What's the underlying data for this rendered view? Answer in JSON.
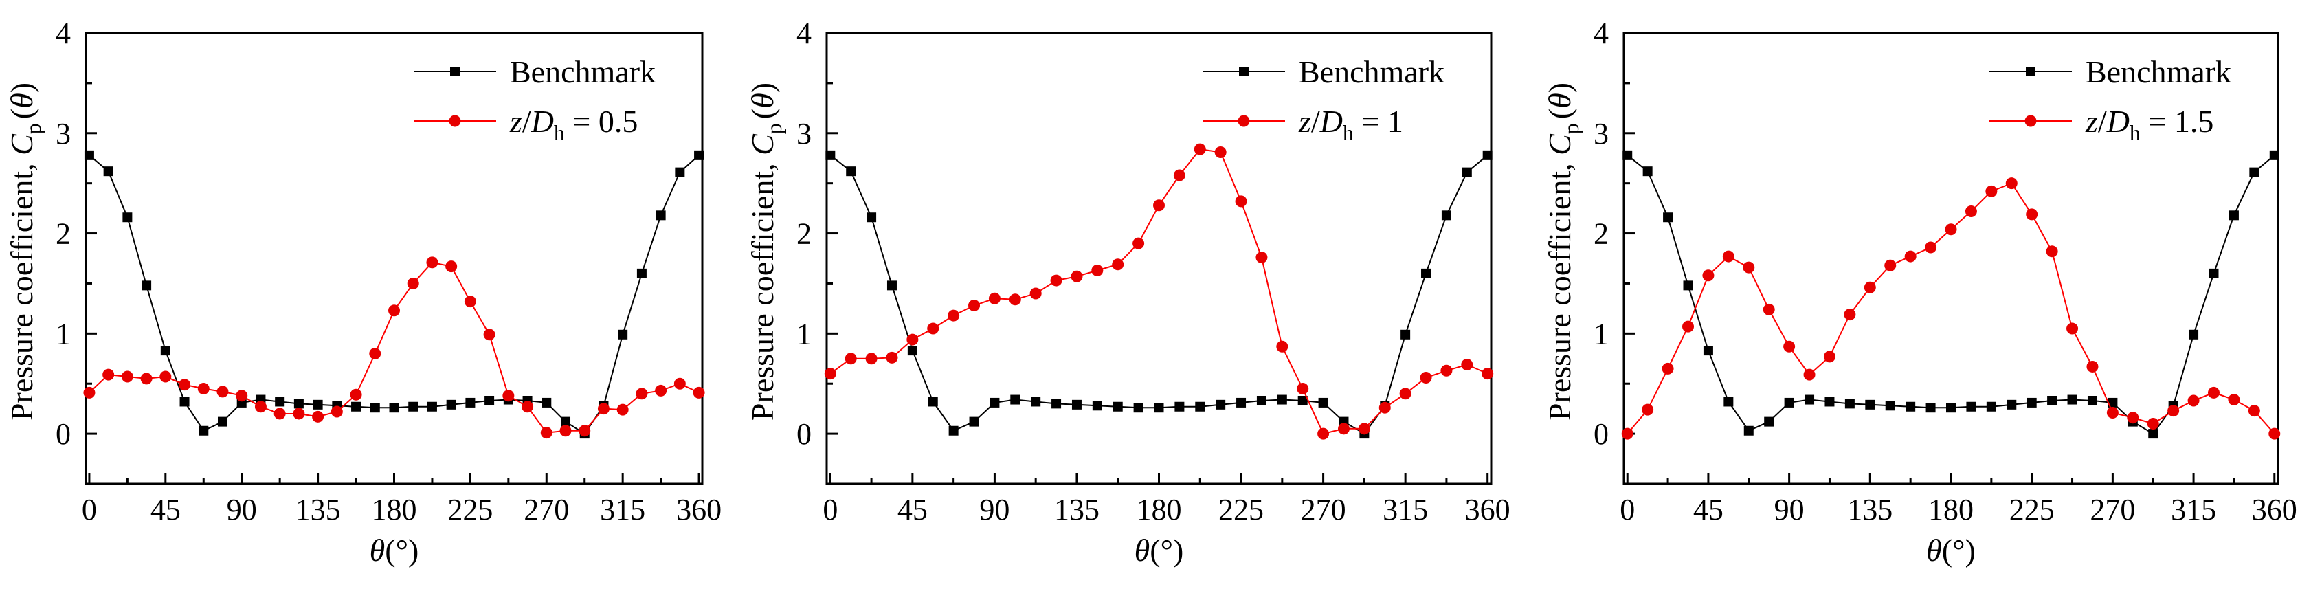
{
  "figure": {
    "colors": {
      "benchmark": "#000000",
      "comparison": "#ff0000",
      "comparison_marker": "#e60000",
      "axis": "#000000"
    }
  },
  "chart_data": [
    {
      "type": "line",
      "xlabel_symbol": "θ",
      "xlabel_unit": "(°)",
      "ylabel_prefix": "Pressure coefficient, ",
      "ylabel_symbol": "C",
      "ylabel_subscript": "p",
      "ylabel_arg_open": "(",
      "ylabel_arg_symbol": "θ",
      "ylabel_arg_close": ")",
      "xlim": [
        -2,
        362
      ],
      "ylim": [
        -0.5,
        4
      ],
      "x_ticks": [
        0,
        45,
        90,
        135,
        180,
        225,
        270,
        315,
        360
      ],
      "x_tick_labels": [
        "0",
        "45",
        "90",
        "135",
        "180",
        "225",
        "270",
        "315",
        "360"
      ],
      "y_ticks": [
        0,
        1,
        2,
        3,
        4
      ],
      "y_tick_labels": [
        "0",
        "1",
        "2",
        "3",
        "4"
      ],
      "legend_position": "top-right",
      "series": [
        {
          "name": "Benchmark",
          "legend_label": "Benchmark",
          "marker": "square",
          "color": "#000000",
          "x": [
            0,
            11.25,
            22.5,
            33.75,
            45,
            56.25,
            67.5,
            78.75,
            90,
            101.25,
            112.5,
            123.75,
            135,
            146.25,
            157.5,
            168.75,
            180,
            191.25,
            202.5,
            213.75,
            225,
            236.25,
            247.5,
            258.75,
            270,
            281.25,
            292.5,
            303.75,
            315,
            326.25,
            337.5,
            348.75,
            360
          ],
          "values": [
            2.78,
            2.62,
            2.16,
            1.48,
            0.83,
            0.32,
            0.03,
            0.12,
            0.31,
            0.34,
            0.32,
            0.3,
            0.29,
            0.28,
            0.27,
            0.26,
            0.26,
            0.27,
            0.27,
            0.29,
            0.31,
            0.33,
            0.34,
            0.33,
            0.31,
            0.12,
            0.0,
            0.28,
            0.99,
            1.6,
            2.18,
            2.61,
            2.78
          ]
        },
        {
          "name": "z/Dh = 0.5",
          "legend_label_italic": "z",
          "legend_label_slash": "/",
          "legend_label_italic2": "D",
          "legend_label_sub": "h",
          "legend_label_rest": " = 0.5",
          "marker": "circle",
          "color": "#ff0000",
          "x": [
            0,
            11.25,
            22.5,
            33.75,
            45,
            56.25,
            67.5,
            78.75,
            90,
            101.25,
            112.5,
            123.75,
            135,
            146.25,
            157.5,
            168.75,
            180,
            191.25,
            202.5,
            213.75,
            225,
            236.25,
            247.5,
            258.75,
            270,
            281.25,
            292.5,
            303.75,
            315,
            326.25,
            337.5,
            348.75,
            360
          ],
          "values": [
            0.41,
            0.59,
            0.57,
            0.55,
            0.57,
            0.49,
            0.45,
            0.42,
            0.38,
            0.27,
            0.2,
            0.2,
            0.17,
            0.22,
            0.39,
            0.8,
            1.23,
            1.5,
            1.71,
            1.67,
            1.32,
            0.99,
            0.38,
            0.27,
            0.01,
            0.03,
            0.03,
            0.25,
            0.24,
            0.4,
            0.43,
            0.5,
            0.41
          ]
        }
      ]
    },
    {
      "type": "line",
      "xlabel_symbol": "θ",
      "xlabel_unit": "(°)",
      "ylabel_prefix": "Pressure coefficient, ",
      "ylabel_symbol": "C",
      "ylabel_subscript": "p",
      "ylabel_arg_open": "(",
      "ylabel_arg_symbol": "θ",
      "ylabel_arg_close": ")",
      "xlim": [
        -2,
        362
      ],
      "ylim": [
        -0.5,
        4
      ],
      "x_ticks": [
        0,
        45,
        90,
        135,
        180,
        225,
        270,
        315,
        360
      ],
      "x_tick_labels": [
        "0",
        "45",
        "90",
        "135",
        "180",
        "225",
        "270",
        "315",
        "360"
      ],
      "y_ticks": [
        0,
        1,
        2,
        3,
        4
      ],
      "y_tick_labels": [
        "0",
        "1",
        "2",
        "3",
        "4"
      ],
      "legend_position": "top-right",
      "series": [
        {
          "name": "Benchmark",
          "legend_label": "Benchmark",
          "marker": "square",
          "color": "#000000",
          "x": [
            0,
            11.25,
            22.5,
            33.75,
            45,
            56.25,
            67.5,
            78.75,
            90,
            101.25,
            112.5,
            123.75,
            135,
            146.25,
            157.5,
            168.75,
            180,
            191.25,
            202.5,
            213.75,
            225,
            236.25,
            247.5,
            258.75,
            270,
            281.25,
            292.5,
            303.75,
            315,
            326.25,
            337.5,
            348.75,
            360
          ],
          "values": [
            2.78,
            2.62,
            2.16,
            1.48,
            0.83,
            0.32,
            0.03,
            0.12,
            0.31,
            0.34,
            0.32,
            0.3,
            0.29,
            0.28,
            0.27,
            0.26,
            0.26,
            0.27,
            0.27,
            0.29,
            0.31,
            0.33,
            0.34,
            0.33,
            0.31,
            0.12,
            0.0,
            0.28,
            0.99,
            1.6,
            2.18,
            2.61,
            2.78
          ]
        },
        {
          "name": "z/Dh = 1",
          "legend_label_italic": "z",
          "legend_label_slash": "/",
          "legend_label_italic2": "D",
          "legend_label_sub": "h",
          "legend_label_rest": " = 1",
          "marker": "circle",
          "color": "#ff0000",
          "x": [
            0,
            11.25,
            22.5,
            33.75,
            45,
            56.25,
            67.5,
            78.75,
            90,
            101.25,
            112.5,
            123.75,
            135,
            146.25,
            157.5,
            168.75,
            180,
            191.25,
            202.5,
            213.75,
            225,
            236.25,
            247.5,
            258.75,
            270,
            281.25,
            292.5,
            303.75,
            315,
            326.25,
            337.5,
            348.75,
            360
          ],
          "values": [
            0.6,
            0.75,
            0.75,
            0.76,
            0.94,
            1.05,
            1.18,
            1.28,
            1.35,
            1.34,
            1.4,
            1.53,
            1.57,
            1.63,
            1.69,
            1.9,
            2.28,
            2.58,
            2.84,
            2.81,
            2.32,
            1.76,
            0.87,
            0.45,
            0.0,
            0.05,
            0.05,
            0.26,
            0.4,
            0.56,
            0.63,
            0.69,
            0.6
          ]
        }
      ]
    },
    {
      "type": "line",
      "xlabel_symbol": "θ",
      "xlabel_unit": "(°)",
      "ylabel_prefix": "Pressure coefficient, ",
      "ylabel_symbol": "C",
      "ylabel_subscript": "p",
      "ylabel_arg_open": "(",
      "ylabel_arg_symbol": "θ",
      "ylabel_arg_close": ")",
      "xlim": [
        -2,
        362
      ],
      "ylim": [
        -0.5,
        4
      ],
      "x_ticks": [
        0,
        45,
        90,
        135,
        180,
        225,
        270,
        315,
        360
      ],
      "x_tick_labels": [
        "0",
        "45",
        "90",
        "135",
        "180",
        "225",
        "270",
        "315",
        "360"
      ],
      "y_ticks": [
        0,
        1,
        2,
        3,
        4
      ],
      "y_tick_labels": [
        "0",
        "1",
        "2",
        "3",
        "4"
      ],
      "legend_position": "top-right",
      "series": [
        {
          "name": "Benchmark",
          "legend_label": "Benchmark",
          "marker": "square",
          "color": "#000000",
          "x": [
            0,
            11.25,
            22.5,
            33.75,
            45,
            56.25,
            67.5,
            78.75,
            90,
            101.25,
            112.5,
            123.75,
            135,
            146.25,
            157.5,
            168.75,
            180,
            191.25,
            202.5,
            213.75,
            225,
            236.25,
            247.5,
            258.75,
            270,
            281.25,
            292.5,
            303.75,
            315,
            326.25,
            337.5,
            348.75,
            360
          ],
          "values": [
            2.78,
            2.62,
            2.16,
            1.48,
            0.83,
            0.32,
            0.03,
            0.12,
            0.31,
            0.34,
            0.32,
            0.3,
            0.29,
            0.28,
            0.27,
            0.26,
            0.26,
            0.27,
            0.27,
            0.29,
            0.31,
            0.33,
            0.34,
            0.33,
            0.31,
            0.12,
            0.0,
            0.28,
            0.99,
            1.6,
            2.18,
            2.61,
            2.78
          ]
        },
        {
          "name": "z/Dh = 1.5",
          "legend_label_italic": "z",
          "legend_label_slash": "/",
          "legend_label_italic2": "D",
          "legend_label_sub": "h",
          "legend_label_rest": " = 1.5",
          "marker": "circle",
          "color": "#ff0000",
          "x": [
            0,
            11.25,
            22.5,
            33.75,
            45,
            56.25,
            67.5,
            78.75,
            90,
            101.25,
            112.5,
            123.75,
            135,
            146.25,
            157.5,
            168.75,
            180,
            191.25,
            202.5,
            213.75,
            225,
            236.25,
            247.5,
            258.75,
            270,
            281.25,
            292.5,
            303.75,
            315,
            326.25,
            337.5,
            348.75,
            360
          ],
          "values": [
            0.0,
            0.24,
            0.65,
            1.07,
            1.58,
            1.77,
            1.66,
            1.24,
            0.87,
            0.59,
            0.77,
            1.19,
            1.46,
            1.68,
            1.77,
            1.86,
            2.04,
            2.22,
            2.42,
            2.5,
            2.19,
            1.82,
            1.05,
            0.67,
            0.21,
            0.16,
            0.1,
            0.23,
            0.33,
            0.41,
            0.34,
            0.23,
            0.0
          ]
        }
      ]
    }
  ]
}
